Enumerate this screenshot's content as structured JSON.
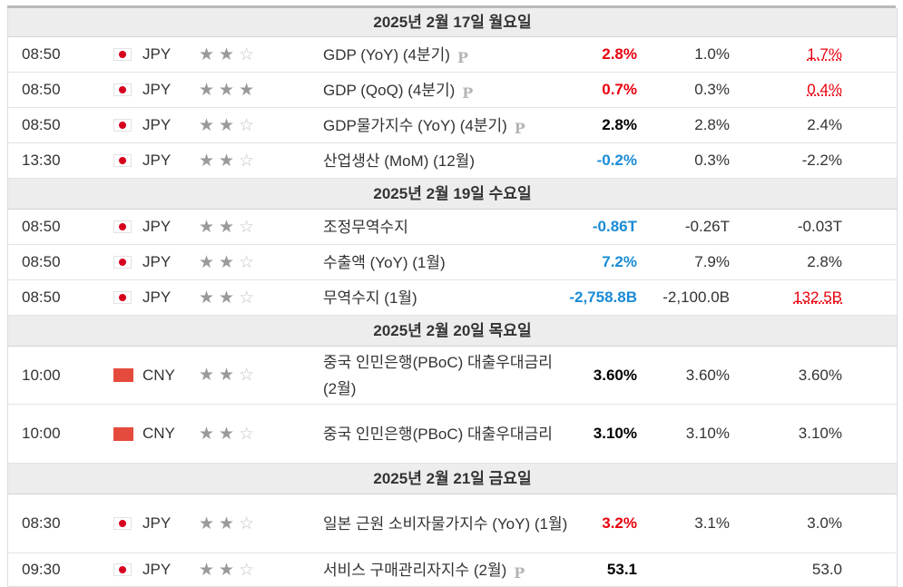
{
  "days": {
    "d0": {
      "label": "2025년 2월 17일 월요일"
    },
    "d1": {
      "label": "2025년 2월 19일 수요일"
    },
    "d2": {
      "label": "2025년 2월 20일 목요일"
    },
    "d3": {
      "label": "2025년 2월 21일 금요일"
    }
  },
  "events": {
    "e0": {
      "time": "08:50",
      "currency": "JPY",
      "flag": "japan-flag-icon",
      "importance": 2,
      "event": "GDP (YoY) (4분기)",
      "preliminary": true,
      "actual": "2.8%",
      "actual_color": "#e8000c",
      "forecast": "1.0%",
      "previous": "1.7%",
      "previous_color": "#e8000c"
    },
    "e1": {
      "time": "08:50",
      "currency": "JPY",
      "flag": "japan-flag-icon",
      "importance": 3,
      "event": "GDP (QoQ) (4분기)",
      "preliminary": true,
      "actual": "0.7%",
      "actual_color": "#e8000c",
      "forecast": "0.3%",
      "previous": "0.4%",
      "previous_color": "#e8000c"
    },
    "e2": {
      "time": "08:50",
      "currency": "JPY",
      "flag": "japan-flag-icon",
      "importance": 2,
      "event": "GDP물가지수 (YoY) (4분기)",
      "preliminary": true,
      "actual": "2.8%",
      "actual_color": "#000000",
      "forecast": "2.8%",
      "previous": "2.4%"
    },
    "e3": {
      "time": "13:30",
      "currency": "JPY",
      "flag": "japan-flag-icon",
      "importance": 2,
      "event": "산업생산 (MoM) (12월)",
      "preliminary": false,
      "actual": "-0.2%",
      "actual_color": "#1a8bd6",
      "forecast": "0.3%",
      "previous": "-2.2%"
    },
    "e4": {
      "time": "08:50",
      "currency": "JPY",
      "flag": "japan-flag-icon",
      "importance": 2,
      "event": "조정무역수지",
      "preliminary": false,
      "actual": "-0.86T",
      "actual_color": "#1a8bd6",
      "forecast": "-0.26T",
      "previous": "-0.03T"
    },
    "e5": {
      "time": "08:50",
      "currency": "JPY",
      "flag": "japan-flag-icon",
      "importance": 2,
      "event": "수출액 (YoY) (1월)",
      "preliminary": false,
      "actual": "7.2%",
      "actual_color": "#1a8bd6",
      "forecast": "7.9%",
      "previous": "2.8%"
    },
    "e6": {
      "time": "08:50",
      "currency": "JPY",
      "flag": "japan-flag-icon",
      "importance": 2,
      "event": "무역수지 (1월)",
      "preliminary": false,
      "actual": "-2,758.8B",
      "actual_color": "#1a8bd6",
      "forecast": "-2,100.0B",
      "previous": "132.5B",
      "previous_color": "#e8000c"
    },
    "e7": {
      "time": "10:00",
      "currency": "CNY",
      "flag": "china-flag-icon",
      "importance": 2,
      "event": "중국 인민은행(PBoC) 대출우대금리 (2월)",
      "preliminary": false,
      "actual": "3.60%",
      "actual_color": "#000000",
      "forecast": "3.60%",
      "previous": "3.60%"
    },
    "e8": {
      "time": "10:00",
      "currency": "CNY",
      "flag": "china-flag-icon",
      "importance": 2,
      "event": "중국 인민은행(PBoC) 대출우대금리",
      "preliminary": false,
      "actual": "3.10%",
      "actual_color": "#000000",
      "forecast": "3.10%",
      "previous": "3.10%"
    },
    "e9": {
      "time": "08:30",
      "currency": "JPY",
      "flag": "japan-flag-icon",
      "importance": 2,
      "event": "일본 근원 소비자물가지수 (YoY) (1월)",
      "preliminary": false,
      "actual": "3.2%",
      "actual_color": "#e8000c",
      "forecast": "3.1%",
      "previous": "3.0%"
    },
    "e10": {
      "time": "09:30",
      "currency": "JPY",
      "flag": "japan-flag-icon",
      "importance": 2,
      "event": "서비스 구매관리자지수 (2월)",
      "preliminary": true,
      "actual": "53.1",
      "actual_color": "#000000",
      "forecast": "",
      "previous": "53.0"
    }
  },
  "icons": {
    "preliminary": "P",
    "star": "star-icon"
  }
}
